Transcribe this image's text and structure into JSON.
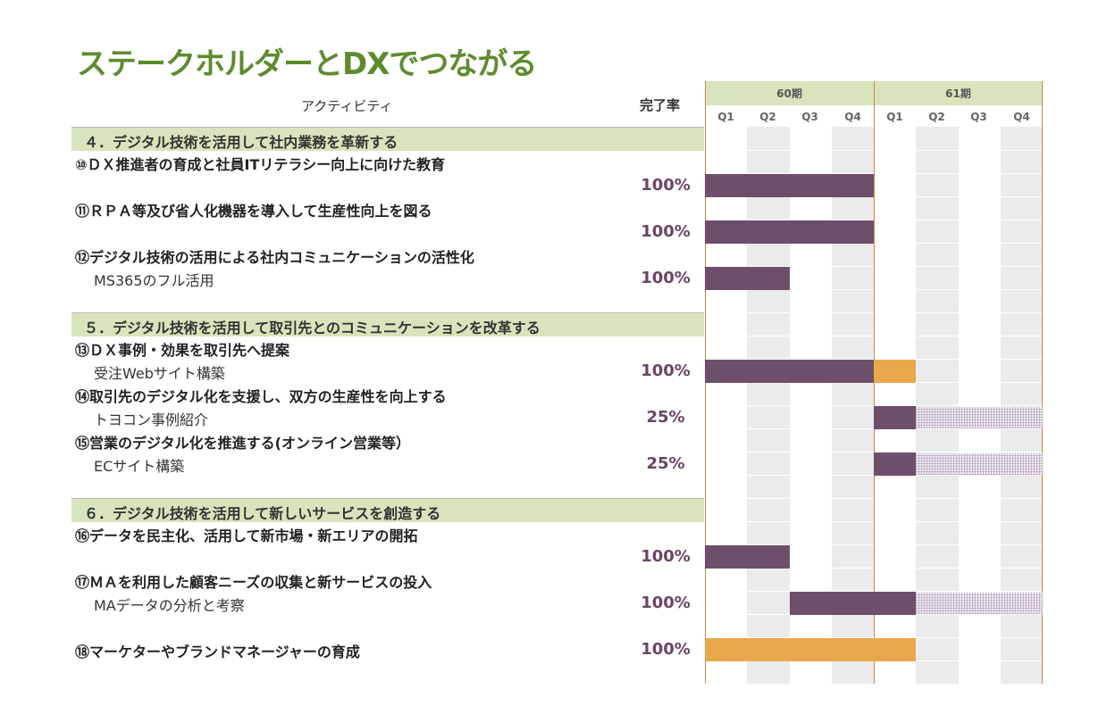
{
  "title": "ステークホルダーとDXでつながる",
  "headers": {
    "activity": "アクティビティ",
    "rate": "完了率"
  },
  "periods": [
    {
      "label": "60期",
      "quarters": [
        "Q1",
        "Q2",
        "Q3",
        "Q4"
      ]
    },
    {
      "label": "61期",
      "quarters": [
        "Q1",
        "Q2",
        "Q3",
        "Q4"
      ]
    }
  ],
  "colors": {
    "title": "#5e8b2e",
    "section_bg": "#d8e4bc",
    "done_bar": "#6e4f6b",
    "highlight_bar": "#e8a84c",
    "rate_text": "#6b4466",
    "divider": "#d4854a"
  },
  "sections": [
    {
      "label": "４．デジタル技術を活用して社内業務を革新する"
    },
    {
      "label": "５．デジタル技術を活用して取引先とのコミュニケーションを改革する"
    },
    {
      "label": "６．デジタル技術を活用して新しいサービスを創造する"
    }
  ],
  "activities": [
    {
      "title": "⑩ＤＸ推進者の育成と社員ITリテラシー向上に向けた教育",
      "sub": "",
      "rate": "100%"
    },
    {
      "title": "⑪ＲＰＡ等及び省人化機器を導入して生産性向上を図る",
      "sub": "",
      "rate": "100%"
    },
    {
      "title": "⑫デジタル技術の活用による社内コミュニケーションの活性化",
      "sub": "MS365のフル活用",
      "rate": "100%"
    },
    {
      "title": "⑬ＤＸ事例・効果を取引先へ提案",
      "sub": "受注Webサイト構築",
      "rate": "100%"
    },
    {
      "title": "⑭取引先のデジタル化を支援し、双方の生産性を向上する",
      "sub": "トヨコン事例紹介",
      "rate": "25%"
    },
    {
      "title": "⑮営業のデジタル化を推進する(オンライン営業等）",
      "sub": "ECサイト構築",
      "rate": "25%"
    },
    {
      "title": "⑯データを民主化、活用して新市場・新エリアの開拓",
      "sub": "",
      "rate": "100%"
    },
    {
      "title": "⑰ＭＡを利用した顧客ニーズの収集と新サービスの投入",
      "sub": "MAデータの分析と考察",
      "rate": "100%"
    },
    {
      "title": "⑱マーケターやブランドマネージャーの育成",
      "sub": "",
      "rate": "100%"
    }
  ],
  "chart_data": {
    "type": "gantt",
    "quarters": [
      "60期 Q1",
      "60期 Q2",
      "60期 Q3",
      "60期 Q4",
      "61期 Q1",
      "61期 Q2",
      "61期 Q3",
      "61期 Q4"
    ],
    "tasks": [
      {
        "id": "⑩",
        "completion": "100%",
        "segments": [
          {
            "start": 0,
            "end": 4,
            "status": "done"
          }
        ]
      },
      {
        "id": "⑪",
        "completion": "100%",
        "segments": [
          {
            "start": 0,
            "end": 4,
            "status": "done"
          }
        ]
      },
      {
        "id": "⑫",
        "completion": "100%",
        "segments": [
          {
            "start": 0,
            "end": 2,
            "status": "done"
          }
        ]
      },
      {
        "id": "⑬",
        "completion": "100%",
        "segments": [
          {
            "start": 0,
            "end": 4,
            "status": "done"
          },
          {
            "start": 4,
            "end": 5,
            "status": "highlight"
          }
        ]
      },
      {
        "id": "⑭",
        "completion": "25%",
        "segments": [
          {
            "start": 4,
            "end": 5,
            "status": "done"
          },
          {
            "start": 5,
            "end": 8,
            "status": "planned"
          }
        ]
      },
      {
        "id": "⑮",
        "completion": "25%",
        "segments": [
          {
            "start": 4,
            "end": 5,
            "status": "done"
          },
          {
            "start": 5,
            "end": 8,
            "status": "planned"
          }
        ]
      },
      {
        "id": "⑯",
        "completion": "100%",
        "segments": [
          {
            "start": 0,
            "end": 2,
            "status": "done"
          }
        ]
      },
      {
        "id": "⑰",
        "completion": "100%",
        "segments": [
          {
            "start": 2,
            "end": 5,
            "status": "done"
          },
          {
            "start": 5,
            "end": 8,
            "status": "planned"
          }
        ]
      },
      {
        "id": "⑱",
        "completion": "100%",
        "segments": [
          {
            "start": 0,
            "end": 5,
            "status": "highlight"
          }
        ]
      }
    ]
  }
}
